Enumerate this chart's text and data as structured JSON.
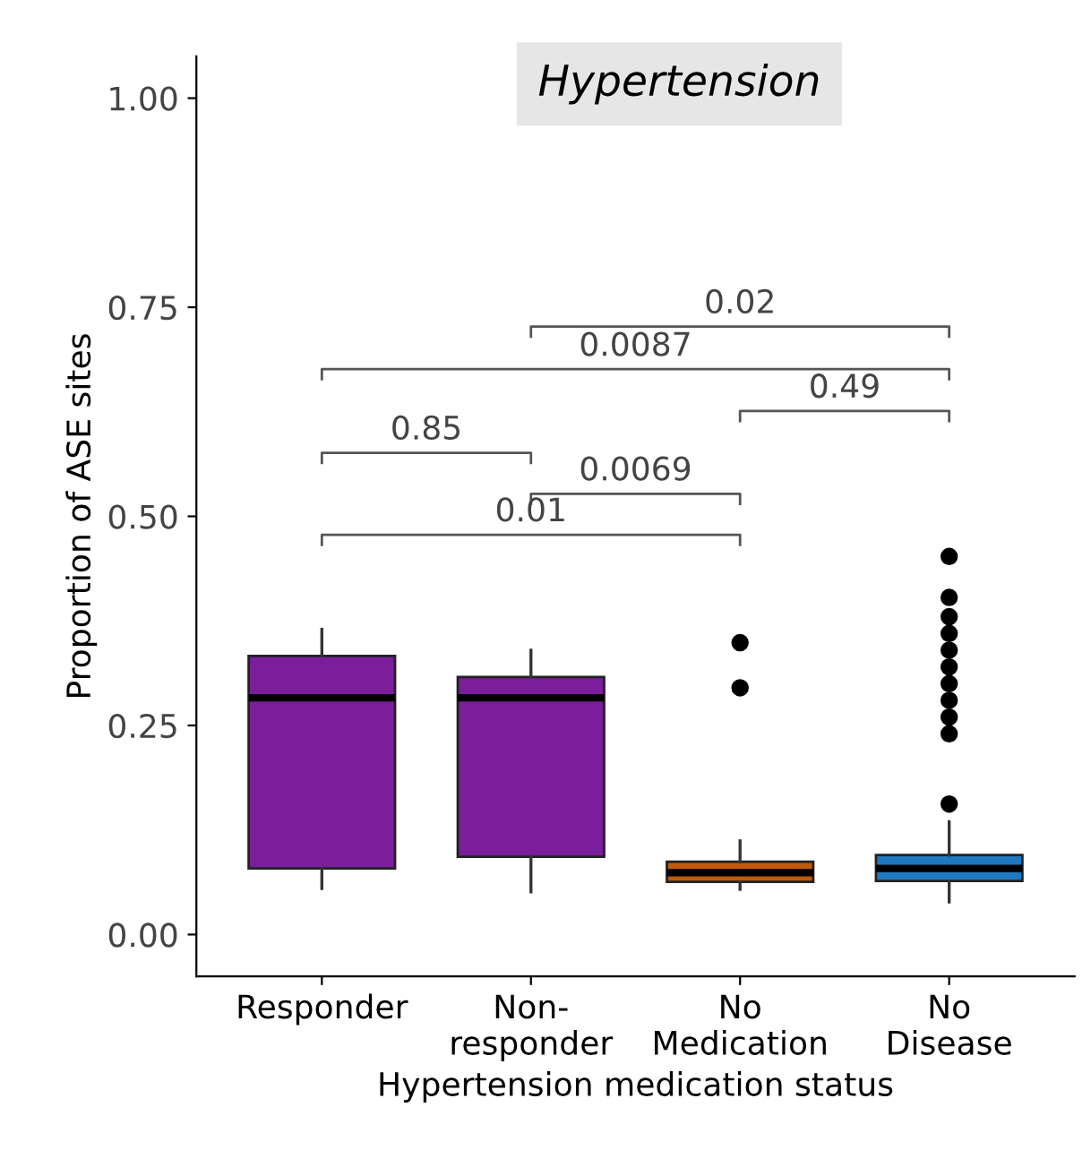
{
  "chart_data": {
    "type": "box",
    "title": "Hypertension",
    "xlabel": "Hypertension medication status",
    "ylabel": "Proportion of ASE sites",
    "categories": [
      "Responder",
      "Non-\nresponder",
      "No\nMedication",
      "No\nDisease"
    ],
    "colors": [
      "#7a1e9c",
      "#7a1e9c",
      "#c05a0b",
      "#1f78c0"
    ],
    "boxes": [
      {
        "low": 0.055,
        "q1": 0.079,
        "median": 0.283,
        "q3": 0.333,
        "high": 0.365
      },
      {
        "low": 0.051,
        "q1": 0.093,
        "median": 0.283,
        "q3": 0.308,
        "high": 0.34
      },
      {
        "low": 0.054,
        "q1": 0.063,
        "median": 0.074,
        "q3": 0.087,
        "high": 0.112,
        "outliers": [
          0.349,
          0.295
        ]
      },
      {
        "low": 0.039,
        "q1": 0.064,
        "median": 0.079,
        "q3": 0.095,
        "high": 0.135,
        "outliers": [
          0.452,
          0.403,
          0.38,
          0.36,
          0.34,
          0.32,
          0.3,
          0.28,
          0.26,
          0.24,
          0.156
        ]
      }
    ],
    "ylim": [
      -0.05,
      1.05
    ],
    "yticks": [
      {
        "value": 0,
        "label": "0.00"
      },
      {
        "value": 0.25,
        "label": "0.25"
      },
      {
        "value": 0.5,
        "label": "0.50"
      },
      {
        "value": 0.75,
        "label": "0.75"
      },
      {
        "value": 1,
        "label": "1.00"
      }
    ],
    "annotations": [
      "0.02",
      "0.0087",
      "0.49",
      "0.85",
      "0.0069",
      "0.01"
    ],
    "grid": false,
    "legend": false
  }
}
